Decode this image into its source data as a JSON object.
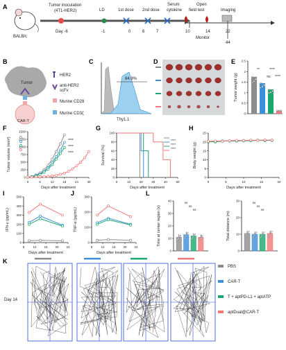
{
  "panels": {
    "A": "A",
    "B": "B",
    "C": "C",
    "D": "D",
    "E": "E",
    "F": "F",
    "G": "G",
    "H": "H",
    "I": "I",
    "J": "J",
    "K": "K",
    "L": "L"
  },
  "colors": {
    "PBS": "#8c8c8c",
    "CART": "#3d8fd8",
    "COMBO": "#1aa86e",
    "APTDUAL": "#f07878"
  },
  "groups": [
    "PBS",
    "CAR-T",
    "T + aptPD-L1 + aptATP",
    "aptDual@CAR-T"
  ],
  "panel_a": {
    "mouse": "BALB/c",
    "tumor_inoculation": "Tumor inoculation",
    "cell_line": "(4T1-HER2)",
    "ld": "LD",
    "first_dose": "1st dose",
    "second_dose": "2nd dose",
    "serum": "Serum",
    "cytokine": "cytokine",
    "open": "Open",
    "field_test": "field test",
    "imaging": "Imaging",
    "monitor": "Monitor",
    "days": [
      "Day -6",
      "-1",
      "0",
      "6",
      "7",
      "10",
      "14",
      "22",
      "44"
    ]
  },
  "panel_b": {
    "tumor": "Tumor",
    "cart": "CAR-T",
    "legend": [
      "HER2",
      "anti-HER2",
      "scFv",
      "Murine CD28",
      "Murine CD3ζ"
    ]
  },
  "panel_c": {
    "percent": "84.9%",
    "xlabel": "Thy1.1"
  },
  "chart_data": [
    {
      "id": "E",
      "type": "bar",
      "ylabel": "Tumor weight (g)",
      "ylim": [
        0,
        2.5
      ],
      "yticks": [
        0,
        0.5,
        1.0,
        1.5,
        2.0,
        2.5
      ],
      "categories": [
        "PBS",
        "CAR-T",
        "T + aptPD-L1 + aptATP",
        "aptDual@CAR-T"
      ],
      "values": [
        1.75,
        1.45,
        1.15,
        0.15
      ],
      "sig": [
        "**",
        "****",
        "ns",
        "****"
      ]
    },
    {
      "id": "F",
      "type": "line",
      "xlabel": "Days after treatment",
      "ylabel": "Tumor volume (mm³)",
      "xlim": [
        0,
        30
      ],
      "ylim": [
        0,
        1500
      ],
      "xticks": [
        0,
        6,
        12,
        18,
        24,
        30
      ],
      "yticks": [
        0,
        250,
        500,
        750,
        1000,
        1250,
        1500
      ],
      "sig": [
        "****",
        "****",
        "****"
      ],
      "series": [
        {
          "name": "PBS",
          "x": [
            0,
            2,
            4,
            6,
            8,
            10,
            12,
            14,
            16,
            18
          ],
          "y": [
            10,
            30,
            80,
            150,
            250,
            400,
            600,
            850,
            1100,
            1400
          ]
        },
        {
          "name": "CAR-T",
          "x": [
            0,
            2,
            4,
            6,
            8,
            10,
            12,
            14,
            16,
            18
          ],
          "y": [
            10,
            25,
            60,
            110,
            200,
            320,
            480,
            680,
            900,
            1150
          ]
        },
        {
          "name": "T + aptPD-L1 + aptATP",
          "x": [
            0,
            2,
            4,
            6,
            8,
            10,
            12,
            14,
            16,
            18
          ],
          "y": [
            10,
            20,
            50,
            90,
            170,
            270,
            420,
            600,
            780,
            980
          ]
        },
        {
          "name": "aptDual@CAR-T",
          "x": [
            0,
            2,
            4,
            6,
            8,
            10,
            12,
            14,
            16,
            18,
            20,
            22,
            24,
            26,
            28,
            30
          ],
          "y": [
            10,
            10,
            15,
            20,
            25,
            35,
            50,
            70,
            100,
            140,
            200,
            280,
            380,
            500,
            650,
            850
          ]
        }
      ]
    },
    {
      "id": "G",
      "type": "line",
      "xlabel": "Days after treatment",
      "ylabel": "Survival (%)",
      "xlim": [
        0,
        50
      ],
      "ylim": [
        0,
        100
      ],
      "xticks": [
        0,
        10,
        20,
        30,
        40,
        50
      ],
      "yticks": [
        0,
        20,
        40,
        60,
        80,
        100
      ],
      "sig": [
        "****",
        "****",
        "****"
      ],
      "series": [
        {
          "name": "PBS",
          "steps": [
            [
              0,
              100
            ],
            [
              19,
              100
            ],
            [
              19,
              0
            ]
          ]
        },
        {
          "name": "CAR-T",
          "steps": [
            [
              0,
              100
            ],
            [
              20,
              100
            ],
            [
              20,
              60
            ],
            [
              22,
              60
            ],
            [
              22,
              0
            ]
          ]
        },
        {
          "name": "T + aptPD-L1 + aptATP",
          "steps": [
            [
              0,
              100
            ],
            [
              22,
              100
            ],
            [
              22,
              60
            ],
            [
              26,
              60
            ],
            [
              26,
              0
            ]
          ]
        },
        {
          "name": "aptDual@CAR-T",
          "steps": [
            [
              0,
              100
            ],
            [
              30,
              100
            ],
            [
              30,
              80
            ],
            [
              38,
              80
            ],
            [
              38,
              40
            ],
            [
              44,
              40
            ],
            [
              44,
              0
            ]
          ]
        }
      ]
    },
    {
      "id": "H",
      "type": "line",
      "xlabel": "Days after treatment",
      "ylabel": "Body weight (g)",
      "xlim": [
        0,
        20
      ],
      "ylim": [
        0,
        25
      ],
      "xticks": [
        0,
        5,
        10,
        15,
        20
      ],
      "yticks": [
        0,
        5,
        10,
        15,
        20,
        25
      ],
      "series": [
        {
          "name": "PBS",
          "x": [
            0,
            2,
            4,
            6,
            8,
            10,
            12,
            14,
            16,
            18
          ],
          "y": [
            20.2,
            20.4,
            20.6,
            20.5,
            20.8,
            20.7,
            20.9,
            21.0,
            20.8,
            20.9
          ]
        },
        {
          "name": "CAR-T",
          "x": [
            0,
            2,
            4,
            6,
            8,
            10,
            12,
            14,
            16,
            18
          ],
          "y": [
            20.0,
            20.3,
            20.5,
            20.6,
            20.7,
            20.6,
            20.8,
            20.9,
            21.0,
            20.8
          ]
        },
        {
          "name": "T + aptPD-L1 + aptATP",
          "x": [
            0,
            2,
            4,
            6,
            8,
            10,
            12,
            14,
            16,
            18
          ],
          "y": [
            20.1,
            20.0,
            20.4,
            20.6,
            20.5,
            20.8,
            20.7,
            20.9,
            20.8,
            21.0
          ]
        },
        {
          "name": "aptDual@CAR-T",
          "x": [
            0,
            2,
            4,
            6,
            8,
            10,
            12,
            14,
            16,
            18
          ],
          "y": [
            20.3,
            20.5,
            20.4,
            20.7,
            20.9,
            20.8,
            21.0,
            20.9,
            21.1,
            21.0
          ]
        }
      ]
    },
    {
      "id": "I",
      "type": "line",
      "xlabel": "Days after treatment",
      "ylabel": "IFN-γ (pg/mL)",
      "xlim": [
        8,
        24
      ],
      "ylim": [
        0,
        500
      ],
      "xticks": [
        8,
        12,
        16,
        20,
        24
      ],
      "yticks": [
        0,
        100,
        200,
        300,
        400,
        500
      ],
      "series": [
        {
          "name": "PBS",
          "x": [
            10,
            14,
            22
          ],
          "y": [
            20,
            25,
            20
          ]
        },
        {
          "name": "CAR-T",
          "x": [
            10,
            14,
            22
          ],
          "y": [
            220,
            290,
            190
          ]
        },
        {
          "name": "T + aptPD-L1 + aptATP",
          "x": [
            10,
            14,
            22
          ],
          "y": [
            200,
            260,
            180
          ]
        },
        {
          "name": "aptDual@CAR-T",
          "x": [
            10,
            14,
            22
          ],
          "y": [
            330,
            420,
            300
          ]
        }
      ]
    },
    {
      "id": "J",
      "type": "line",
      "xlabel": "Days after treatment",
      "ylabel": "TNF-α (pg/mL)",
      "xlim": [
        8,
        24
      ],
      "ylim": [
        0,
        300
      ],
      "xticks": [
        8,
        12,
        16,
        20,
        24
      ],
      "yticks": [
        0,
        100,
        200,
        300
      ],
      "series": [
        {
          "name": "PBS",
          "x": [
            10,
            14,
            22
          ],
          "y": [
            15,
            20,
            15
          ]
        },
        {
          "name": "CAR-T",
          "x": [
            10,
            14,
            22
          ],
          "y": [
            130,
            160,
            120
          ]
        },
        {
          "name": "T + aptPD-L1 + aptATP",
          "x": [
            10,
            14,
            22
          ],
          "y": [
            120,
            150,
            115
          ]
        },
        {
          "name": "aptDual@CAR-T",
          "x": [
            10,
            14,
            22
          ],
          "y": [
            180,
            240,
            170
          ]
        }
      ]
    },
    {
      "id": "L1",
      "type": "bar",
      "ylabel": "Time at center region (s)",
      "ylim": [
        0,
        40
      ],
      "yticks": [
        0,
        10,
        20,
        30,
        40
      ],
      "categories": [
        "PBS",
        "CAR-T",
        "T + aptPD-L1 + aptATP",
        "aptDual@CAR-T"
      ],
      "values": [
        11,
        13,
        12,
        11
      ],
      "sig": [
        "ns",
        "ns",
        "ns"
      ]
    },
    {
      "id": "L2",
      "type": "bar",
      "ylabel": "Total distance (m)",
      "ylim": [
        0,
        30
      ],
      "yticks": [
        0,
        10,
        20,
        30
      ],
      "categories": [
        "PBS",
        "CAR-T",
        "T + aptPD-L1 + aptATP",
        "aptDual@CAR-T"
      ],
      "values": [
        10.5,
        10,
        10,
        10.5
      ],
      "sig": [
        "ns",
        "ns",
        "ns"
      ]
    }
  ],
  "panel_k": {
    "day": "Day 14"
  }
}
